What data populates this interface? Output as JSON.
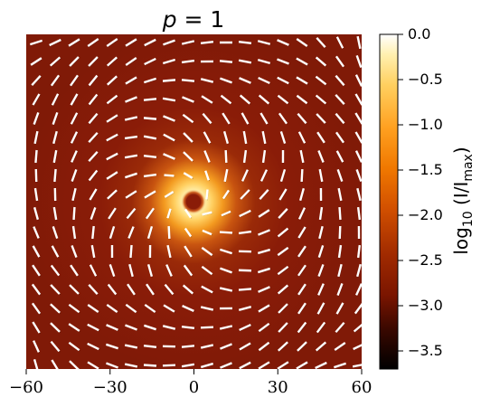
{
  "chart_data": {
    "type": "heatmap",
    "title": "p = 1",
    "xlabel": "",
    "ylabel": "",
    "xlim": [
      -60,
      60
    ],
    "ylim": [
      -60,
      60
    ],
    "x_ticks": [
      -60,
      -30,
      0,
      30,
      60
    ],
    "x_tick_labels": [
      "−60",
      "−30",
      "0",
      "30",
      "60"
    ],
    "colorbar": {
      "label": "log10 (I/I_max)",
      "label_main": "log",
      "label_sub": "10",
      "label_paren": "(I/I",
      "label_sub2": "max",
      "label_close": ")",
      "range": [
        -3.7,
        0.0
      ],
      "ticks": [
        0.0,
        -0.5,
        -1.0,
        -1.5,
        -2.0,
        -2.5,
        -3.0,
        -3.5
      ],
      "tick_labels": [
        "0.0",
        "−0.5",
        "−1.0",
        "−1.5",
        "−2.0",
        "−2.5",
        "−3.0",
        "−3.5"
      ],
      "colormap": "afmhot"
    },
    "intensity_peak_center": [
      0,
      0
    ],
    "central_hole": true,
    "polarization_pattern": "spiral vortex (p = 1)",
    "colors": {
      "background_min": "#8a1c08",
      "peak": "#fff8d0",
      "ticks_vectors": "#ffffff"
    }
  }
}
